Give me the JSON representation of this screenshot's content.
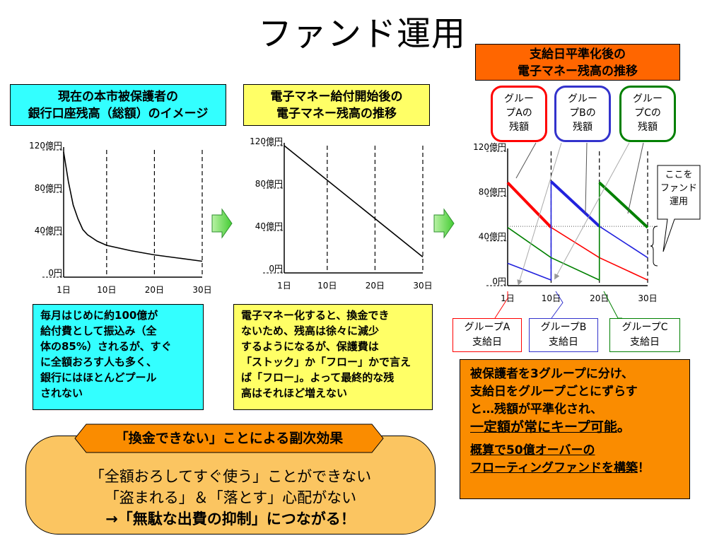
{
  "title": "ファンド運用",
  "panel1": {
    "header_lines": [
      "現在の本市被保護者の",
      "銀行口座残高（総額）のイメージ"
    ],
    "note_lines": [
      "毎月はじめに約100億が",
      "給付費として振込み（全",
      "体の85%）されるが、すぐ",
      "に全額おろす人も多く、",
      "銀行にはほとんどプール",
      "されない"
    ]
  },
  "panel2": {
    "header_lines": [
      "電子マネー給付開始後の",
      "電子マネー残高の推移"
    ],
    "note_lines": [
      "電子マネー化すると、換金でき",
      "ないため、残高は徐々に減少",
      "するようになるが、保護費は",
      "「ストック」か「フロー」かで言え",
      "ば「フロー」。よって最終的な残",
      "高はそれほど増えない"
    ]
  },
  "panel3": {
    "header_lines": [
      "支給日平準化後の",
      "電子マネー残高の推移"
    ],
    "bubbles": [
      {
        "lines": [
          "グルー",
          "プAの",
          "残額"
        ],
        "color": "#ff0000"
      },
      {
        "lines": [
          "グルー",
          "プBの",
          "残額"
        ],
        "color": "#3333cc"
      },
      {
        "lines": [
          "グルー",
          "プCの",
          "残額"
        ],
        "color": "#008000"
      }
    ],
    "callout_lines": [
      "ここを",
      "ファンド",
      "運用"
    ],
    "paydays": [
      {
        "lines": [
          "グループA",
          "支給日"
        ],
        "color": "#ff0000"
      },
      {
        "lines": [
          "グループB",
          "支給日"
        ],
        "color": "#3333cc"
      },
      {
        "lines": [
          "グループC",
          "支給日"
        ],
        "color": "#008000"
      }
    ],
    "note_lines": [
      "被保護者を3グループに分け、",
      "支給日をグループごとにずらす",
      "と…残額が平準化され、"
    ],
    "note_emph": "一定額が常にキープ可能",
    "note_emph_tail": "。",
    "note_final_lines": [
      "概算で50億オーバーの",
      "フローティングファンドを構築"
    ],
    "note_final_tail": "！"
  },
  "side_effect": {
    "title": "「換金できない」ことによる副次効果",
    "lines": [
      "「全額おろしてすぐ使う」ことができない",
      "「盗まれる」＆「落とす」心配がない",
      "→「無駄な出費の抑制」につながる！"
    ]
  },
  "chart_data": [
    {
      "type": "line",
      "x_ticks": [
        "1日",
        "10日",
        "20日",
        "30日"
      ],
      "y_ticks": [
        "0円",
        "40億円",
        "80億円",
        "120億円"
      ],
      "xlim": [
        1,
        30
      ],
      "ylim": [
        0,
        120
      ],
      "series": [
        {
          "color": "#000000",
          "points": [
            [
              1,
              118
            ],
            [
              2,
              90
            ],
            [
              3,
              68
            ],
            [
              4,
              55
            ],
            [
              5,
              45
            ],
            [
              6,
              40
            ],
            [
              7,
              37
            ],
            [
              8,
              34
            ],
            [
              10,
              30
            ],
            [
              15,
              25
            ],
            [
              20,
              21
            ],
            [
              25,
              18
            ],
            [
              30,
              15
            ]
          ]
        }
      ]
    },
    {
      "type": "line",
      "x_ticks": [
        "1日",
        "10日",
        "20日",
        "30日"
      ],
      "y_ticks": [
        "0円",
        "40億円",
        "80億円",
        "120億円"
      ],
      "xlim": [
        1,
        30
      ],
      "ylim": [
        0,
        120
      ],
      "series": [
        {
          "color": "#000000",
          "points": [
            [
              1,
              120
            ],
            [
              30,
              15
            ]
          ]
        }
      ]
    },
    {
      "type": "line",
      "x_ticks": [
        "1日",
        "10日",
        "20日",
        "30日"
      ],
      "y_ticks": [
        "0円",
        "40億円",
        "80億円",
        "120億円"
      ],
      "xlim": [
        1,
        30
      ],
      "ylim": [
        0,
        120
      ],
      "fund_level": 53,
      "series": [
        {
          "group": "A",
          "color": "#ff0000",
          "points": [
            [
              1,
              92
            ],
            [
              10,
              52
            ],
            [
              20,
              25
            ],
            [
              30,
              5
            ]
          ],
          "highlight": [
            [
              1,
              92
            ],
            [
              10,
              52
            ]
          ]
        },
        {
          "group": "B",
          "color": "#2222dd",
          "points": [
            [
              1,
              20
            ],
            [
              10,
              5
            ],
            [
              10,
              93
            ],
            [
              20,
              53
            ],
            [
              30,
              25
            ]
          ],
          "highlight": [
            [
              10,
              93
            ],
            [
              20,
              53
            ]
          ]
        },
        {
          "group": "C",
          "color": "#008000",
          "points": [
            [
              1,
              52
            ],
            [
              10,
              25
            ],
            [
              20,
              5
            ],
            [
              20,
              92
            ],
            [
              30,
              52
            ]
          ],
          "highlight": [
            [
              20,
              92
            ],
            [
              30,
              52
            ]
          ]
        }
      ]
    }
  ]
}
